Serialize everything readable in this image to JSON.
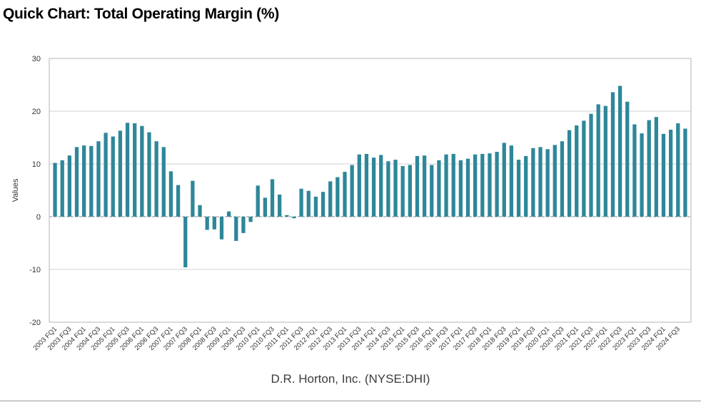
{
  "page": {
    "title": "Quick Chart: Total Operating Margin (%)",
    "source": "D.R. Horton, Inc. (NYSE:DHI)"
  },
  "chart_data": {
    "type": "bar",
    "title": "Quick Chart: Total Operating Margin (%)",
    "xlabel": "",
    "ylabel": "Values",
    "ylim": [
      -20,
      30
    ],
    "yticks": [
      30,
      20,
      10,
      0,
      -10,
      -20
    ],
    "grid": true,
    "legend": "none",
    "bar_color": "#2e8799",
    "categories": [
      "2003 FQ1",
      "2003 FQ2",
      "2003 FQ3",
      "2003 FQ4",
      "2004 FQ1",
      "2004 FQ2",
      "2004 FQ3",
      "2004 FQ4",
      "2005 FQ1",
      "2005 FQ2",
      "2005 FQ3",
      "2005 FQ4",
      "2006 FQ1",
      "2006 FQ2",
      "2006 FQ3",
      "2006 FQ4",
      "2007 FQ1",
      "2007 FQ2",
      "2007 FQ3",
      "2007 FQ4",
      "2008 FQ1",
      "2008 FQ2",
      "2008 FQ3",
      "2008 FQ4",
      "2009 FQ1",
      "2009 FQ2",
      "2009 FQ3",
      "2009 FQ4",
      "2010 FQ1",
      "2010 FQ2",
      "2010 FQ3",
      "2010 FQ4",
      "2011 FQ1",
      "2011 FQ2",
      "2011 FQ3",
      "2011 FQ4",
      "2012 FQ1",
      "2012 FQ2",
      "2012 FQ3",
      "2012 FQ4",
      "2013 FQ1",
      "2013 FQ2",
      "2013 FQ3",
      "2013 FQ4",
      "2014 FQ1",
      "2014 FQ2",
      "2014 FQ3",
      "2014 FQ4",
      "2015 FQ1",
      "2015 FQ2",
      "2015 FQ3",
      "2015 FQ4",
      "2016 FQ1",
      "2016 FQ2",
      "2016 FQ3",
      "2016 FQ4",
      "2017 FQ1",
      "2017 FQ2",
      "2017 FQ3",
      "2017 FQ4",
      "2018 FQ1",
      "2018 FQ2",
      "2018 FQ3",
      "2018 FQ4",
      "2019 FQ1",
      "2019 FQ2",
      "2019 FQ3",
      "2019 FQ4",
      "2020 FQ1",
      "2020 FQ2",
      "2020 FQ3",
      "2020 FQ4",
      "2021 FQ1",
      "2021 FQ2",
      "2021 FQ3",
      "2021 FQ4",
      "2022 FQ1",
      "2022 FQ2",
      "2022 FQ3",
      "2022 FQ4",
      "2023 FQ1",
      "2023 FQ2",
      "2023 FQ3",
      "2023 FQ4",
      "2024 FQ1",
      "2024 FQ2",
      "2024 FQ3",
      "2024 FQ4"
    ],
    "values": [
      10.2,
      10.7,
      11.6,
      13.2,
      13.5,
      13.4,
      14.3,
      15.9,
      15.2,
      16.3,
      17.8,
      17.7,
      17.2,
      16.0,
      14.3,
      13.2,
      8.6,
      6.0,
      -9.6,
      6.8,
      2.2,
      -2.5,
      -2.4,
      -4.3,
      1.0,
      -4.6,
      -3.1,
      -1.0,
      5.9,
      3.6,
      7.1,
      4.2,
      0.3,
      -0.3,
      5.3,
      4.9,
      3.8,
      4.7,
      6.7,
      7.5,
      8.5,
      9.8,
      11.8,
      11.9,
      11.2,
      11.7,
      10.5,
      10.8,
      9.6,
      9.8,
      11.5,
      11.6,
      9.8,
      10.7,
      11.8,
      11.9,
      10.7,
      11.0,
      11.8,
      11.9,
      12.0,
      12.3,
      14.0,
      13.5,
      10.8,
      11.5,
      13.0,
      13.2,
      12.8,
      13.6,
      14.3,
      16.4,
      17.3,
      18.2,
      19.5,
      21.3,
      21.0,
      23.6,
      24.8,
      21.8,
      17.5,
      15.8,
      18.3,
      18.9,
      15.7,
      16.5,
      17.7,
      16.7
    ],
    "tick_labels": [
      "2003 FQ1",
      "2003 FQ3",
      "2004 FQ1",
      "2004 FQ3",
      "2005 FQ1",
      "2005 FQ3",
      "2006 FQ1",
      "2006 FQ3",
      "2007 FQ1",
      "2007 FQ3",
      "2008 FQ1",
      "2008 FQ3",
      "2009 FQ1",
      "2009 FQ3",
      "2010 FQ1",
      "2010 FQ3",
      "2011 FQ1",
      "2011 FQ3",
      "2012 FQ1",
      "2012 FQ3",
      "2013 FQ1",
      "2013 FQ3",
      "2014 FQ1",
      "2014 FQ3",
      "2015 FQ1",
      "2015 FQ3",
      "2016 FQ1",
      "2016 FQ3",
      "2017 FQ1",
      "2017 FQ3",
      "2018 FQ1",
      "2018 FQ3",
      "2019 FQ1",
      "2019 FQ3",
      "2020 FQ1",
      "2020 FQ3",
      "2021 FQ1",
      "2021 FQ3",
      "2022 FQ1",
      "2022 FQ3",
      "2023 FQ1",
      "2023 FQ3",
      "2024 FQ1",
      "2024 FQ3"
    ]
  }
}
